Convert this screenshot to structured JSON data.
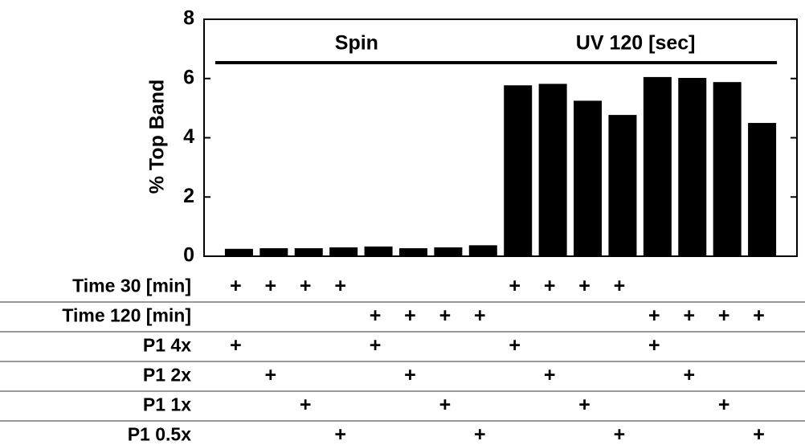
{
  "chart_data": {
    "type": "bar",
    "ylabel": "% Top Band",
    "categories": [
      null,
      null,
      null,
      null,
      null,
      null,
      null,
      null,
      null,
      null,
      null,
      null,
      null,
      null,
      null,
      null
    ],
    "values": [
      0.25,
      0.27,
      0.27,
      0.3,
      0.33,
      0.27,
      0.3,
      0.37,
      5.77,
      5.82,
      5.25,
      4.77,
      6.05,
      6.02,
      5.88,
      4.5
    ],
    "color": "#000000",
    "ylim": [
      0,
      8
    ],
    "yticks": [
      0,
      2,
      4,
      6,
      8
    ],
    "grid": false,
    "annotations": [
      "Spin",
      "UV 120 [sec]"
    ]
  },
  "table": {
    "rows": [
      {
        "label": "Time 30 [min]",
        "cells": [
          "+",
          "+",
          "+",
          "+",
          null,
          null,
          null,
          null,
          "+",
          "+",
          "+",
          "+",
          null,
          null,
          null,
          null
        ]
      },
      {
        "label": "Time 120 [min]",
        "cells": [
          null,
          null,
          null,
          null,
          "+",
          "+",
          "+",
          "+",
          null,
          null,
          null,
          null,
          "+",
          "+",
          "+",
          "+"
        ]
      },
      {
        "label": "P1 4x",
        "cells": [
          "+",
          null,
          null,
          null,
          "+",
          null,
          null,
          null,
          "+",
          null,
          null,
          null,
          "+",
          null,
          null,
          null
        ]
      },
      {
        "label": "P1 2x",
        "cells": [
          null,
          "+",
          null,
          null,
          null,
          "+",
          null,
          null,
          null,
          "+",
          null,
          null,
          null,
          "+",
          null,
          null
        ]
      },
      {
        "label": "P1 1x",
        "cells": [
          null,
          null,
          "+",
          null,
          null,
          null,
          "+",
          null,
          null,
          null,
          "+",
          null,
          null,
          null,
          "+",
          null
        ]
      },
      {
        "label": "P1 0.5x",
        "cells": [
          null,
          null,
          null,
          "+",
          null,
          null,
          null,
          "+",
          null,
          null,
          null,
          "+",
          null,
          null,
          null,
          "+"
        ]
      }
    ]
  }
}
